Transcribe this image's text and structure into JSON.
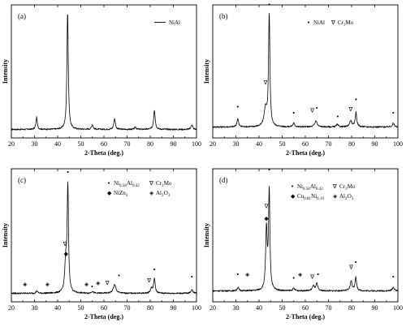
{
  "chart_data": [
    {
      "type": "line",
      "panel_label": "(a)",
      "xlabel": "2-Theta (deg.)",
      "ylabel": "Intensity",
      "xlim": [
        20,
        100
      ],
      "x_ticks": [
        "20",
        "30",
        "40",
        "50",
        "60",
        "70",
        "80",
        "90",
        "100"
      ],
      "legend": {
        "entries": [
          {
            "symbol": "line",
            "text": "NiAl"
          }
        ]
      },
      "baseline": 0.03,
      "peaks": [
        {
          "x": 30.9,
          "h": 0.1,
          "w": 0.35
        },
        {
          "x": 44.3,
          "h": 0.97,
          "w": 0.35
        },
        {
          "x": 55.0,
          "h": 0.04,
          "w": 0.4
        },
        {
          "x": 64.6,
          "h": 0.09,
          "w": 0.4
        },
        {
          "x": 73.6,
          "h": 0.02,
          "w": 0.4
        },
        {
          "x": 81.8,
          "h": 0.16,
          "w": 0.4
        },
        {
          "x": 98.0,
          "h": 0.04,
          "w": 0.4
        }
      ],
      "markers": []
    },
    {
      "type": "line",
      "panel_label": "(b)",
      "xlabel": "2-Theta (deg.)",
      "ylabel": "Intensity",
      "xlim": [
        20,
        100
      ],
      "x_ticks": [
        "20",
        "30",
        "40",
        "50",
        "60",
        "70",
        "80",
        "90",
        "100"
      ],
      "legend": {
        "entries": [
          {
            "symbol": "•",
            "text": "NiAl"
          },
          {
            "symbol": "∇",
            "text": "Cr₃Mo"
          }
        ]
      },
      "baseline": 0.05,
      "peaks": [
        {
          "x": 30.8,
          "h": 0.07,
          "w": 0.4
        },
        {
          "x": 42.8,
          "h": 0.15,
          "w": 0.7
        },
        {
          "x": 44.4,
          "h": 0.92,
          "w": 0.35
        },
        {
          "x": 55.0,
          "h": 0.03,
          "w": 0.5
        },
        {
          "x": 64.6,
          "h": 0.05,
          "w": 0.6
        },
        {
          "x": 73.8,
          "h": 0.02,
          "w": 0.5
        },
        {
          "x": 79.6,
          "h": 0.05,
          "w": 0.6
        },
        {
          "x": 81.9,
          "h": 0.12,
          "w": 0.4
        },
        {
          "x": 98.0,
          "h": 0.03,
          "w": 0.5
        }
      ],
      "markers": [
        {
          "x": 30.8,
          "symbol": "•",
          "y": 0.2
        },
        {
          "x": 42.8,
          "symbol": "∇",
          "y": 0.4
        },
        {
          "x": 44.4,
          "symbol": "•",
          "y": 1.04
        },
        {
          "x": 55.0,
          "symbol": "•",
          "y": 0.15
        },
        {
          "x": 63.0,
          "symbol": "∇",
          "y": 0.17
        },
        {
          "x": 65.0,
          "symbol": "•",
          "y": 0.19
        },
        {
          "x": 74.0,
          "symbol": "•",
          "y": 0.12
        },
        {
          "x": 79.6,
          "symbol": "∇",
          "y": 0.18
        },
        {
          "x": 81.9,
          "symbol": "•",
          "y": 0.26
        },
        {
          "x": 98.0,
          "symbol": "•",
          "y": 0.15
        }
      ]
    },
    {
      "type": "line",
      "panel_label": "(c)",
      "xlabel": "2-Theta (deg.)",
      "ylabel": "Intensity",
      "xlim": [
        20,
        100
      ],
      "x_ticks": [
        "20",
        "30",
        "40",
        "50",
        "60",
        "70",
        "80",
        "90",
        "100"
      ],
      "legend": {
        "entries": [
          {
            "symbol": "•",
            "text": "Ni",
            "sub": "0.58",
            "text2": "Al",
            "sub2": "0.42"
          },
          {
            "symbol": "∇",
            "text": "Cr",
            "sub": "3",
            "text2": "Mo"
          },
          {
            "symbol": "◆",
            "text": "NiZn",
            "sub": "3"
          },
          {
            "symbol": "◈",
            "text": "Al",
            "sub": "2",
            "text2": "O",
            "sub2": "3"
          }
        ]
      },
      "baseline": 0.03,
      "peaks": [
        {
          "x": 31.0,
          "h": 0.02,
          "w": 0.4
        },
        {
          "x": 43.5,
          "h": 0.25,
          "w": 0.5
        },
        {
          "x": 44.4,
          "h": 0.86,
          "w": 0.35
        },
        {
          "x": 55.0,
          "h": 0.015,
          "w": 0.5
        },
        {
          "x": 64.6,
          "h": 0.07,
          "w": 0.7
        },
        {
          "x": 80.5,
          "h": 0.04,
          "w": 0.5
        },
        {
          "x": 81.8,
          "h": 0.12,
          "w": 0.4
        },
        {
          "x": 98.0,
          "h": 0.03,
          "w": 0.5
        }
      ],
      "markers": [
        {
          "x": 25.9,
          "symbol": "◈",
          "y": 0.09
        },
        {
          "x": 35.6,
          "symbol": "◈",
          "y": 0.09
        },
        {
          "x": 43.2,
          "symbol": "∇",
          "y": 0.42
        },
        {
          "x": 43.6,
          "symbol": "◆",
          "y": 0.34
        },
        {
          "x": 44.4,
          "symbol": "•",
          "y": 1.01
        },
        {
          "x": 52.5,
          "symbol": "◈",
          "y": 0.09
        },
        {
          "x": 54.9,
          "symbol": "•",
          "y": 0.07
        },
        {
          "x": 57.5,
          "symbol": "◈",
          "y": 0.1
        },
        {
          "x": 61.5,
          "symbol": "∇",
          "y": 0.1
        },
        {
          "x": 66.5,
          "symbol": "•",
          "y": 0.16
        },
        {
          "x": 79.5,
          "symbol": "∇",
          "y": 0.12
        },
        {
          "x": 81.8,
          "symbol": "•",
          "y": 0.21
        },
        {
          "x": 98.0,
          "symbol": "•",
          "y": 0.15
        }
      ]
    },
    {
      "type": "line",
      "panel_label": "(d)",
      "xlabel": "2-Theta (deg.)",
      "ylabel": "Intensity",
      "xlim": [
        20,
        100
      ],
      "x_ticks": [
        "20",
        "30",
        "40",
        "50",
        "60",
        "70",
        "80",
        "90",
        "100"
      ],
      "legend": {
        "entries": [
          {
            "symbol": "•",
            "text": "Ni",
            "sub": "0.58",
            "text2": "Al",
            "sub2": "0.42"
          },
          {
            "symbol": "∇",
            "text": "Cr",
            "sub": "3",
            "text2": "Mo"
          },
          {
            "symbol": "◆",
            "text": "Cu",
            "sub": "0.81",
            "text2": "Ni",
            "sub2": "0.19"
          },
          {
            "symbol": "◈",
            "text": "Al",
            "sub": "2",
            "text2": "O",
            "sub2": "3"
          }
        ]
      },
      "baseline": 0.05,
      "peaks": [
        {
          "x": 30.9,
          "h": 0.03,
          "w": 0.4
        },
        {
          "x": 43.2,
          "h": 0.5,
          "w": 0.4
        },
        {
          "x": 44.4,
          "h": 0.82,
          "w": 0.35
        },
        {
          "x": 55.0,
          "h": 0.02,
          "w": 0.5
        },
        {
          "x": 63.5,
          "h": 0.04,
          "w": 0.6
        },
        {
          "x": 65.0,
          "h": 0.06,
          "w": 0.4
        },
        {
          "x": 79.8,
          "h": 0.08,
          "w": 0.5
        },
        {
          "x": 81.8,
          "h": 0.11,
          "w": 0.4
        },
        {
          "x": 98.0,
          "h": 0.03,
          "w": 0.5
        }
      ],
      "markers": [
        {
          "x": 30.8,
          "symbol": "•",
          "y": 0.17
        },
        {
          "x": 35.0,
          "symbol": "◈",
          "y": 0.17
        },
        {
          "x": 43.2,
          "symbol": "∇",
          "y": 0.73
        },
        {
          "x": 43.2,
          "symbol": "◆",
          "y": 0.63
        },
        {
          "x": 44.4,
          "symbol": "•",
          "y": 1.03
        },
        {
          "x": 55.0,
          "symbol": "•",
          "y": 0.14
        },
        {
          "x": 57.8,
          "symbol": "◈",
          "y": 0.17
        },
        {
          "x": 63.0,
          "symbol": "∇",
          "y": 0.15
        },
        {
          "x": 65.5,
          "symbol": "•",
          "y": 0.17
        },
        {
          "x": 79.8,
          "symbol": "∇",
          "y": 0.23
        },
        {
          "x": 81.8,
          "symbol": "•",
          "y": 0.27
        },
        {
          "x": 98.0,
          "symbol": "•",
          "y": 0.15
        }
      ]
    }
  ]
}
